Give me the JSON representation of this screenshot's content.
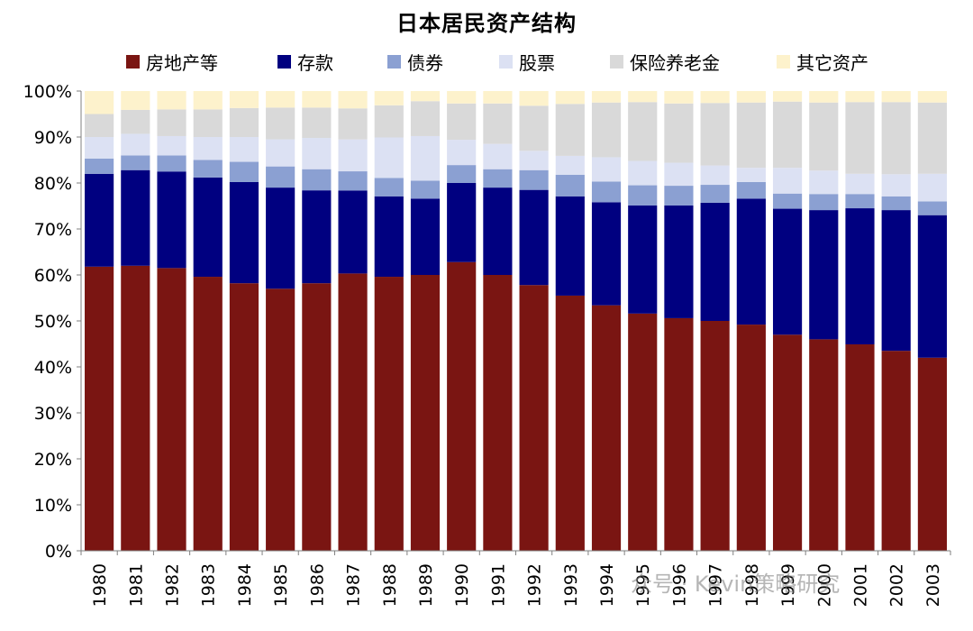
{
  "chart_data": {
    "type": "bar",
    "stacked": true,
    "title": "日本居民资产结构",
    "xlabel": "",
    "ylabel": "",
    "ylim": [
      0,
      100
    ],
    "y_ticks": [
      "0%",
      "10%",
      "20%",
      "30%",
      "40%",
      "50%",
      "60%",
      "70%",
      "80%",
      "90%",
      "100%"
    ],
    "grid": false,
    "legend_position": "top",
    "categories": [
      "1980",
      "1981",
      "1982",
      "1983",
      "1984",
      "1985",
      "1986",
      "1987",
      "1988",
      "1989",
      "1990",
      "1991",
      "1992",
      "1993",
      "1994",
      "1995",
      "1996",
      "1997",
      "1998",
      "1999",
      "2000",
      "2001",
      "2002",
      "2003"
    ],
    "series": [
      {
        "name": "房地产等",
        "color": "#7a1512",
        "values": [
          61.8,
          62.0,
          61.5,
          59.6,
          58.2,
          57.0,
          58.2,
          60.8,
          59.6,
          60.0,
          62.8,
          60.0,
          57.8,
          55.5,
          53.4,
          51.6,
          50.6,
          50.0,
          49.2,
          47.0,
          46.0,
          44.9,
          43.5,
          42.0
        ]
      },
      {
        "name": "存款",
        "color": "#000080",
        "values": [
          20.2,
          20.8,
          21.0,
          21.6,
          22.0,
          22.0,
          20.2,
          18.2,
          17.5,
          16.6,
          17.2,
          19.0,
          20.7,
          21.6,
          22.4,
          23.5,
          24.5,
          25.7,
          27.4,
          27.4,
          28.1,
          29.6,
          30.6,
          31.0
        ]
      },
      {
        "name": "债券",
        "color": "#8ba0d2",
        "values": [
          3.3,
          3.2,
          3.5,
          3.8,
          4.4,
          4.6,
          4.6,
          4.2,
          4.0,
          3.9,
          3.9,
          4.0,
          4.3,
          4.7,
          4.5,
          4.4,
          4.3,
          3.9,
          3.6,
          3.3,
          3.5,
          3.1,
          3.0,
          3.0
        ]
      },
      {
        "name": "股票",
        "color": "#dce1f3",
        "values": [
          4.7,
          4.7,
          4.2,
          5.0,
          5.4,
          5.9,
          6.8,
          7.0,
          8.8,
          9.7,
          5.5,
          5.5,
          4.2,
          4.1,
          5.3,
          5.3,
          5.0,
          4.2,
          3.1,
          5.6,
          5.1,
          4.4,
          4.8,
          6.0
        ]
      },
      {
        "name": "保险养老金",
        "color": "#d9d9d9",
        "values": [
          5.0,
          5.2,
          5.8,
          6.0,
          6.3,
          6.9,
          6.6,
          6.8,
          7.0,
          7.6,
          7.9,
          8.8,
          9.8,
          11.3,
          11.9,
          12.8,
          12.9,
          13.6,
          14.2,
          14.4,
          14.8,
          15.6,
          15.7,
          15.5
        ]
      },
      {
        "name": "其它资产",
        "color": "#fdf2cc",
        "values": [
          5.0,
          4.1,
          4.0,
          4.0,
          3.7,
          3.6,
          3.6,
          3.8,
          3.1,
          2.2,
          2.7,
          2.7,
          3.2,
          2.8,
          2.5,
          2.4,
          2.7,
          2.6,
          2.5,
          2.3,
          2.5,
          2.4,
          2.4,
          2.5
        ]
      }
    ]
  },
  "watermark": "众号 · Kevin策略研究"
}
